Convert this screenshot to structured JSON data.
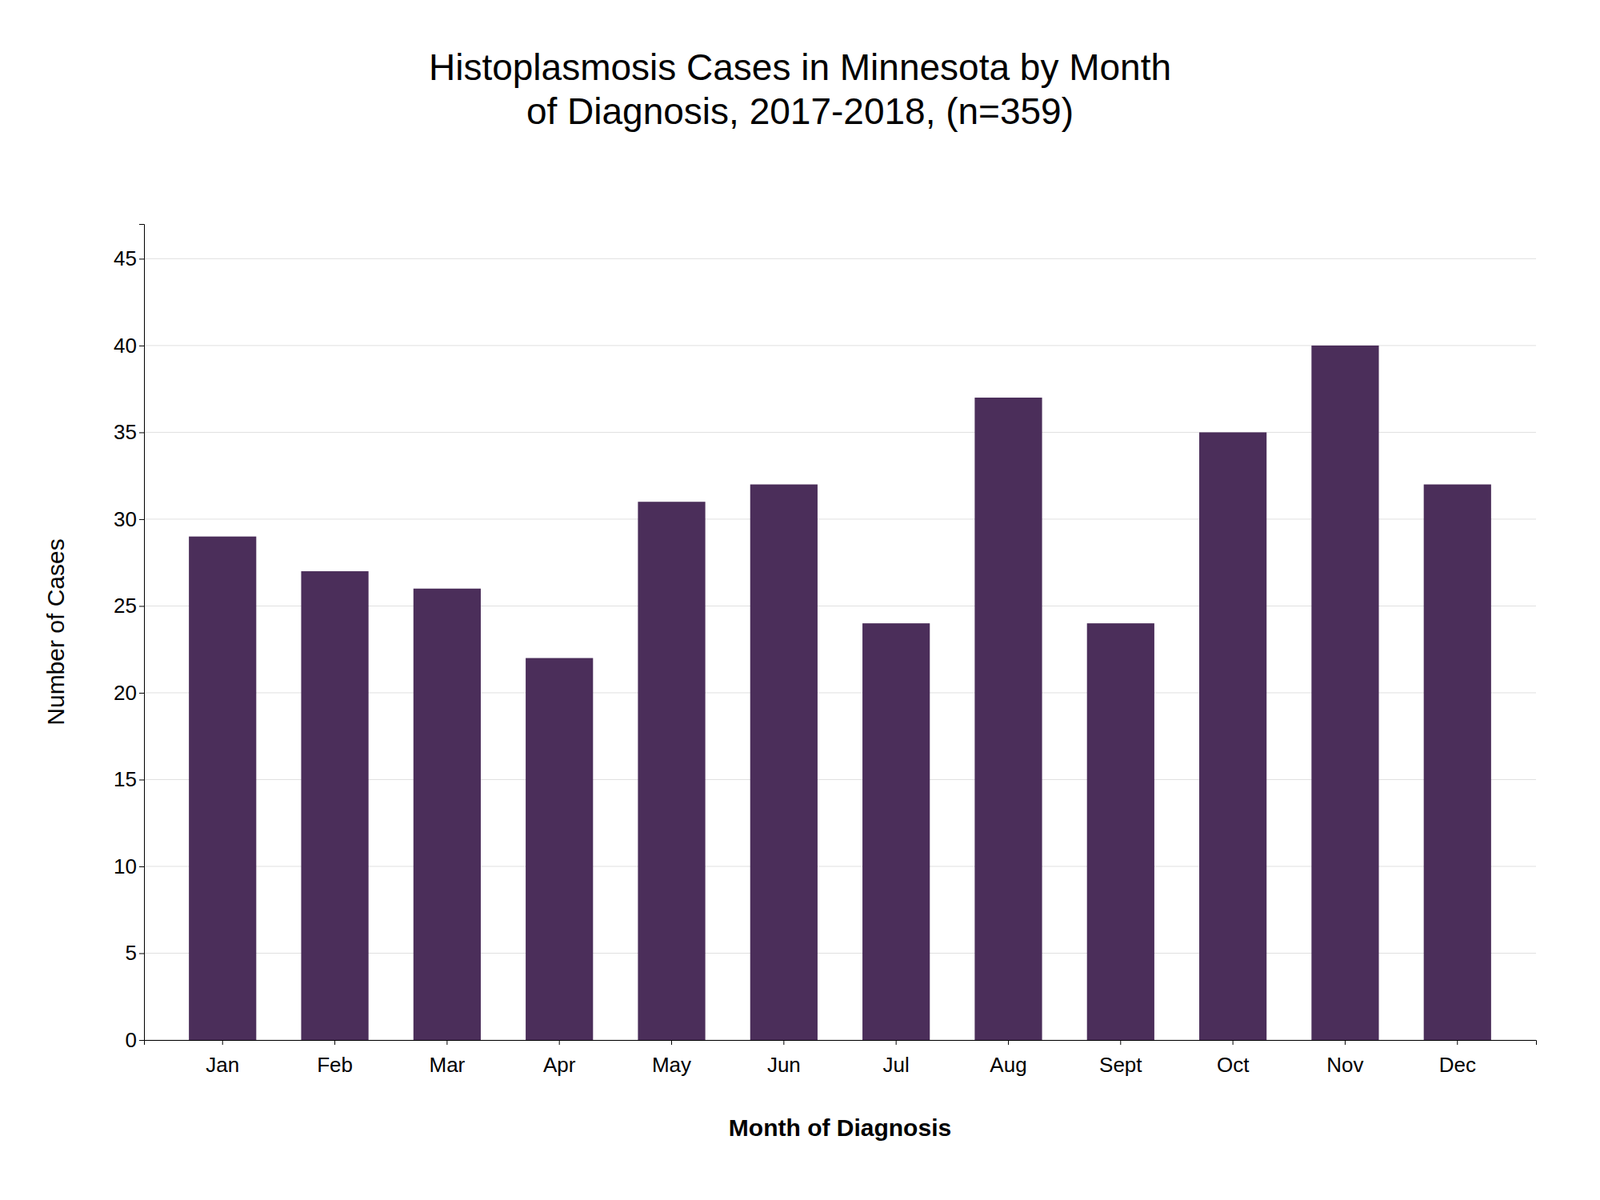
{
  "chart_data": {
    "type": "bar",
    "title": "Histoplasmosis Cases in Minnesota by Month\nof Diagnosis, 2017-2018, (n=359)",
    "xlabel": "Month of Diagnosis",
    "ylabel": "Number of Cases",
    "categories": [
      "Jan",
      "Feb",
      "Mar",
      "Apr",
      "May",
      "Jun",
      "Jul",
      "Aug",
      "Sept",
      "Oct",
      "Nov",
      "Dec"
    ],
    "values": [
      29,
      27,
      26,
      22,
      31,
      32,
      24,
      37,
      24,
      35,
      40,
      32
    ],
    "color": "#4B2E5A",
    "ylim": [
      0,
      47
    ],
    "yticks": [
      0,
      5,
      10,
      15,
      20,
      25,
      30,
      35,
      40,
      45
    ],
    "grid": true
  }
}
